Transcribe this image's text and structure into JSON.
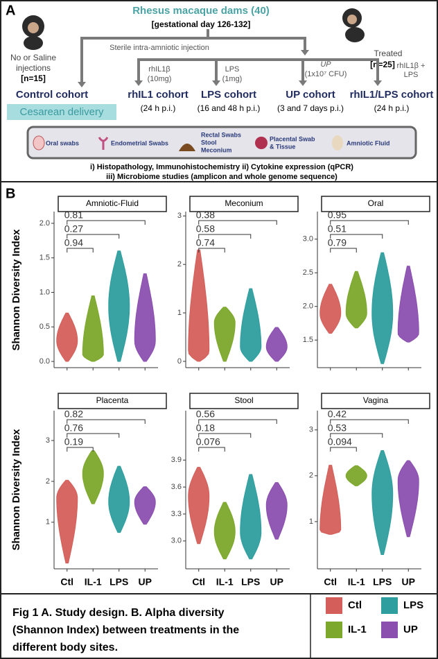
{
  "panel_a": {
    "label": "A",
    "title": "Rhesus macaque dams (40)",
    "subtitle": "[gestational day 126-132]",
    "injection": "Sterile intra-amniotic injection",
    "untreated": [
      "No or Saline",
      "injections"
    ],
    "untreated_n": "[n=15]",
    "treated": "Treated",
    "treated_n": "[n=25]",
    "treatments": [
      [
        "rhIL1β",
        "(10mg)"
      ],
      [
        "LPS",
        "(1mg)"
      ],
      [
        "UP",
        "(1x10⁷ CFU)"
      ],
      [
        "rhIL1β +",
        "LPS"
      ]
    ],
    "cohorts": [
      {
        "name": "Control cohort"
      },
      {
        "name": "rhIL1 cohort",
        "time": "(24 h p.i.)"
      },
      {
        "name": "LPS cohort",
        "time": "(16 and 48 h p.i.)"
      },
      {
        "name": "UP cohort",
        "time": "(3 and 7 days p.i.)"
      },
      {
        "name": "rhIL1/LPS cohort",
        "time": "(24 h p.i.)"
      }
    ],
    "delivery": "Cesarean delivery",
    "samples": [
      [
        "Oral swabs"
      ],
      [
        "Endometrial Swabs"
      ],
      [
        "Rectal Swabs",
        "Stool",
        "Meconium"
      ],
      [
        "Placental Swab",
        "& Tissue"
      ],
      [
        "Amniotic Fluid"
      ]
    ],
    "analyses": [
      "i) Histopathology, Immunohistochemistry ii) Cytokine expression (qPCR)",
      "iii) Microbiome studies (amplicon and whole genome sequence)"
    ]
  },
  "panel_b": {
    "label": "B",
    "y_label": "Shannon Diversity Index",
    "categories": [
      "Ctl",
      "IL-1",
      "LPS",
      "UP"
    ],
    "colors": [
      "#d45f5a",
      "#7ca82b",
      "#2e9e9e",
      "#8b4fb0"
    ]
  },
  "chart_data": [
    {
      "type": "violin",
      "title": "Amniotic-Fluid",
      "ylim": [
        -0.09,
        2.17
      ],
      "yticks": [
        {
          "value": 0,
          "label": "0.0"
        },
        {
          "value": 0.5,
          "label": "0.5"
        },
        {
          "value": 1,
          "label": "1.0"
        },
        {
          "value": 1.5,
          "label": "1.5"
        },
        {
          "value": 2,
          "label": "2.0"
        }
      ],
      "groups": [
        {
          "min": 0,
          "peak": 0.3,
          "max": 0.7
        },
        {
          "min": 0,
          "peak": 0.1,
          "max": 0.95
        },
        {
          "min": 0,
          "peak": 0.8,
          "max": 1.6
        },
        {
          "min": 0,
          "peak": 0.3,
          "max": 1.27
        }
      ],
      "pvalues": [
        0.94,
        0.27,
        0.81
      ]
    },
    {
      "type": "violin",
      "title": "Meconium",
      "ylim": [
        -0.13,
        3.09
      ],
      "yticks": [
        0,
        1,
        2,
        3
      ],
      "groups": [
        {
          "min": 0,
          "peak": 0.2,
          "max": 2.3
        },
        {
          "min": 0,
          "peak": 0.8,
          "max": 1.12
        },
        {
          "min": 0,
          "peak": 0.3,
          "max": 1.5
        },
        {
          "min": 0,
          "peak": 0.3,
          "max": 0.7
        }
      ],
      "pvalues": [
        0.74,
        0.58,
        0.38
      ]
    },
    {
      "type": "violin",
      "title": "Oral",
      "ylim": [
        1.09,
        3.41
      ],
      "yticks": [
        {
          "value": 1.5,
          "label": "1.5"
        },
        {
          "value": 2,
          "label": "2.0"
        },
        {
          "value": 2.5,
          "label": "2.5"
        },
        {
          "value": 3,
          "label": "3.0"
        }
      ],
      "groups": [
        {
          "min": 1.6,
          "peak": 1.9,
          "max": 2.33
        },
        {
          "min": 1.68,
          "peak": 1.9,
          "max": 2.52
        },
        {
          "min": 1.15,
          "peak": 1.9,
          "max": 2.8
        },
        {
          "min": 1.47,
          "peak": 1.6,
          "max": 2.6
        }
      ],
      "pvalues": [
        0.79,
        0.51,
        0.95
      ]
    },
    {
      "type": "violin",
      "title": "Placenta",
      "ylim": [
        -0.14,
        3.73
      ],
      "yticks": [
        1,
        2,
        3
      ],
      "groups": [
        {
          "min": 0,
          "peak": 1.6,
          "max": 2.03
        },
        {
          "min": 1.45,
          "peak": 2.2,
          "max": 2.75
        },
        {
          "min": 0.75,
          "peak": 1.5,
          "max": 2.37
        },
        {
          "min": 0.95,
          "peak": 1.5,
          "max": 1.87
        }
      ],
      "pvalues": [
        0.19,
        0.76,
        0.82
      ]
    },
    {
      "type": "violin",
      "title": "Stool",
      "ylim": [
        2.69,
        4.45
      ],
      "yticks": [
        {
          "value": 3,
          "label": "3.0"
        },
        {
          "value": 3.3,
          "label": "3.3"
        },
        {
          "value": 3.6,
          "label": "3.6"
        },
        {
          "value": 3.9,
          "label": "3.9"
        }
      ],
      "groups": [
        {
          "min": 2.97,
          "peak": 3.5,
          "max": 3.82
        },
        {
          "min": 2.8,
          "peak": 3.1,
          "max": 3.43
        },
        {
          "min": 2.8,
          "peak": 3.1,
          "max": 3.74
        },
        {
          "min": 3.02,
          "peak": 3.4,
          "max": 3.65
        }
      ],
      "pvalues": [
        0.076,
        0.18,
        0.56
      ]
    },
    {
      "type": "violin",
      "title": "Vagina",
      "ylim": [
        -0.03,
        3.42
      ],
      "yticks": [
        1,
        2,
        3
      ],
      "groups": [
        {
          "min": 0.72,
          "peak": 0.8,
          "max": 2.23
        },
        {
          "min": 1.78,
          "peak": 2,
          "max": 2.22
        },
        {
          "min": 0.28,
          "peak": 1.6,
          "max": 2.55
        },
        {
          "min": 0.67,
          "peak": 1.9,
          "max": 2.33
        }
      ],
      "pvalues": [
        0.094,
        0.53,
        0.42
      ]
    }
  ],
  "caption": {
    "lines": [
      "Fig 1 A. Study design. B. Alpha diversity",
      "(Shannon Index) between treatments in the",
      "different body sites."
    ]
  }
}
